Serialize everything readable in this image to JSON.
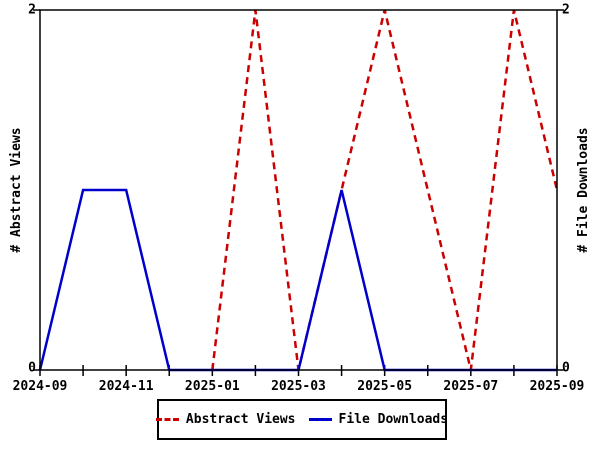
{
  "chart_data": {
    "type": "line",
    "title": "",
    "x": [
      "2024-09",
      "2024-10",
      "2024-11",
      "2024-12",
      "2025-01",
      "2025-02",
      "2025-03",
      "2025-04",
      "2025-05",
      "2025-06",
      "2025-07",
      "2025-08",
      "2025-09"
    ],
    "x_tick_labels": [
      "2024-09",
      "2024-11",
      "2025-01",
      "2025-03",
      "2025-05",
      "2025-07",
      "2025-09"
    ],
    "ylim": [
      0,
      2
    ],
    "y_ticks": [
      0,
      2
    ],
    "ylabel_left": "# Abstract Views",
    "ylabel_right": "# File Downloads",
    "grid": false,
    "legend_position": "bottom-center",
    "axis_color": "#000000",
    "background_color": "#ffffff",
    "series": [
      {
        "name": "Abstract Views",
        "color": "#cc0000",
        "style": "dashed",
        "axis": "left",
        "values": [
          null,
          null,
          null,
          null,
          0,
          2,
          0,
          1,
          2,
          1,
          0,
          2,
          1
        ]
      },
      {
        "name": "File Downloads",
        "color": "#0000cc",
        "style": "solid",
        "axis": "right",
        "values": [
          0,
          1,
          1,
          0,
          0,
          0,
          0,
          1,
          0,
          0,
          0,
          0,
          0
        ]
      }
    ]
  }
}
